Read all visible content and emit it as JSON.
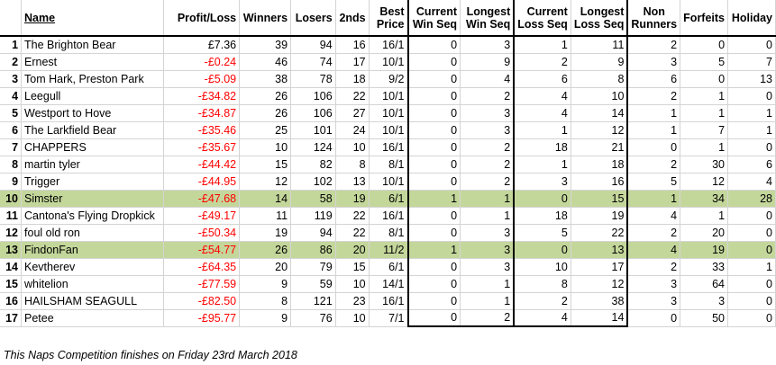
{
  "headers": {
    "rank": "",
    "name": "Name",
    "profit_loss": "Profit/Loss",
    "winners": "Winners",
    "losers": "Losers",
    "seconds": "2nds",
    "best_price_1": "Best",
    "best_price_2": "Price",
    "cur_win_1": "Current",
    "cur_win_2": "Win Seq",
    "long_win_1": "Longest",
    "long_win_2": "Win Seq",
    "cur_loss_1": "Current",
    "cur_loss_2": "Loss Seq",
    "long_loss_1": "Longest",
    "long_loss_2": "Loss Seq",
    "non_runners_1": "Non",
    "non_runners_2": "Runners",
    "forfeits": "Forfeits",
    "holiday": "Holiday"
  },
  "rows": [
    {
      "rank": "1",
      "name": "The Brighton Bear",
      "pl": "£7.36",
      "winners": "39",
      "losers": "94",
      "seconds": "16",
      "best": "16/1",
      "cur_win": "0",
      "long_win": "3",
      "cur_loss": "1",
      "long_loss": "11",
      "non_runners": "2",
      "forfeits": "0",
      "holiday": "0",
      "negative": false,
      "highlight": false
    },
    {
      "rank": "2",
      "name": "Ernest",
      "pl": "-£0.24",
      "winners": "46",
      "losers": "74",
      "seconds": "17",
      "best": "10/1",
      "cur_win": "0",
      "long_win": "9",
      "cur_loss": "2",
      "long_loss": "9",
      "non_runners": "3",
      "forfeits": "5",
      "holiday": "7",
      "negative": true,
      "highlight": false
    },
    {
      "rank": "3",
      "name": "Tom Hark, Preston Park",
      "pl": "-£5.09",
      "winners": "38",
      "losers": "78",
      "seconds": "18",
      "best": "9/2",
      "cur_win": "0",
      "long_win": "4",
      "cur_loss": "6",
      "long_loss": "8",
      "non_runners": "6",
      "forfeits": "0",
      "holiday": "13",
      "negative": true,
      "highlight": false
    },
    {
      "rank": "4",
      "name": "Leegull",
      "pl": "-£34.82",
      "winners": "26",
      "losers": "106",
      "seconds": "22",
      "best": "10/1",
      "cur_win": "0",
      "long_win": "2",
      "cur_loss": "4",
      "long_loss": "10",
      "non_runners": "2",
      "forfeits": "1",
      "holiday": "0",
      "negative": true,
      "highlight": false
    },
    {
      "rank": "5",
      "name": "Westport to Hove",
      "pl": "-£34.87",
      "winners": "26",
      "losers": "106",
      "seconds": "27",
      "best": "10/1",
      "cur_win": "0",
      "long_win": "3",
      "cur_loss": "4",
      "long_loss": "14",
      "non_runners": "1",
      "forfeits": "1",
      "holiday": "1",
      "negative": true,
      "highlight": false
    },
    {
      "rank": "6",
      "name": "The Larkfield Bear",
      "pl": "-£35.46",
      "winners": "25",
      "losers": "101",
      "seconds": "24",
      "best": "10/1",
      "cur_win": "0",
      "long_win": "3",
      "cur_loss": "1",
      "long_loss": "12",
      "non_runners": "1",
      "forfeits": "7",
      "holiday": "1",
      "negative": true,
      "highlight": false
    },
    {
      "rank": "7",
      "name": "CHAPPERS",
      "pl": "-£35.67",
      "winners": "10",
      "losers": "124",
      "seconds": "10",
      "best": "16/1",
      "cur_win": "0",
      "long_win": "2",
      "cur_loss": "18",
      "long_loss": "21",
      "non_runners": "0",
      "forfeits": "1",
      "holiday": "0",
      "negative": true,
      "highlight": false
    },
    {
      "rank": "8",
      "name": "martin tyler",
      "pl": "-£44.42",
      "winners": "15",
      "losers": "82",
      "seconds": "8",
      "best": "8/1",
      "cur_win": "0",
      "long_win": "2",
      "cur_loss": "1",
      "long_loss": "18",
      "non_runners": "2",
      "forfeits": "30",
      "holiday": "6",
      "negative": true,
      "highlight": false
    },
    {
      "rank": "9",
      "name": "Trigger",
      "pl": "-£44.95",
      "winners": "12",
      "losers": "102",
      "seconds": "13",
      "best": "10/1",
      "cur_win": "0",
      "long_win": "2",
      "cur_loss": "3",
      "long_loss": "16",
      "non_runners": "5",
      "forfeits": "12",
      "holiday": "4",
      "negative": true,
      "highlight": false
    },
    {
      "rank": "10",
      "name": "Simster",
      "pl": "-£47.68",
      "winners": "14",
      "losers": "58",
      "seconds": "19",
      "best": "6/1",
      "cur_win": "1",
      "long_win": "1",
      "cur_loss": "0",
      "long_loss": "15",
      "non_runners": "1",
      "forfeits": "34",
      "holiday": "28",
      "negative": true,
      "highlight": true
    },
    {
      "rank": "11",
      "name": "Cantona's Flying Dropkick",
      "pl": "-£49.17",
      "winners": "11",
      "losers": "119",
      "seconds": "22",
      "best": "16/1",
      "cur_win": "0",
      "long_win": "1",
      "cur_loss": "18",
      "long_loss": "19",
      "non_runners": "4",
      "forfeits": "1",
      "holiday": "0",
      "negative": true,
      "highlight": false
    },
    {
      "rank": "12",
      "name": "foul old ron",
      "pl": "-£50.34",
      "winners": "19",
      "losers": "94",
      "seconds": "22",
      "best": "8/1",
      "cur_win": "0",
      "long_win": "3",
      "cur_loss": "5",
      "long_loss": "22",
      "non_runners": "2",
      "forfeits": "20",
      "holiday": "0",
      "negative": true,
      "highlight": false
    },
    {
      "rank": "13",
      "name": "FindonFan",
      "pl": "-£54.77",
      "winners": "26",
      "losers": "86",
      "seconds": "20",
      "best": "11/2",
      "cur_win": "1",
      "long_win": "3",
      "cur_loss": "0",
      "long_loss": "13",
      "non_runners": "4",
      "forfeits": "19",
      "holiday": "0",
      "negative": true,
      "highlight": true
    },
    {
      "rank": "14",
      "name": "Kevtherev",
      "pl": "-£64.35",
      "winners": "20",
      "losers": "79",
      "seconds": "15",
      "best": "6/1",
      "cur_win": "0",
      "long_win": "3",
      "cur_loss": "10",
      "long_loss": "17",
      "non_runners": "2",
      "forfeits": "33",
      "holiday": "1",
      "negative": true,
      "highlight": false
    },
    {
      "rank": "15",
      "name": "whitelion",
      "pl": "-£77.59",
      "winners": "9",
      "losers": "59",
      "seconds": "10",
      "best": "14/1",
      "cur_win": "0",
      "long_win": "1",
      "cur_loss": "8",
      "long_loss": "12",
      "non_runners": "3",
      "forfeits": "64",
      "holiday": "0",
      "negative": true,
      "highlight": false
    },
    {
      "rank": "16",
      "name": "HAILSHAM SEAGULL",
      "pl": "-£82.50",
      "winners": "8",
      "losers": "121",
      "seconds": "23",
      "best": "16/1",
      "cur_win": "0",
      "long_win": "1",
      "cur_loss": "2",
      "long_loss": "38",
      "non_runners": "3",
      "forfeits": "3",
      "holiday": "0",
      "negative": true,
      "highlight": false
    },
    {
      "rank": "17",
      "name": "Petee",
      "pl": "-£95.77",
      "winners": "9",
      "losers": "76",
      "seconds": "10",
      "best": "7/1",
      "cur_win": "0",
      "long_win": "2",
      "cur_loss": "4",
      "long_loss": "14",
      "non_runners": "0",
      "forfeits": "50",
      "holiday": "0",
      "negative": true,
      "highlight": false
    }
  ],
  "footnote": "This Naps Competition finishes on Friday 23rd March 2018",
  "colors": {
    "highlight_row": "#c4d79b",
    "negative_text": "#ff0000"
  }
}
